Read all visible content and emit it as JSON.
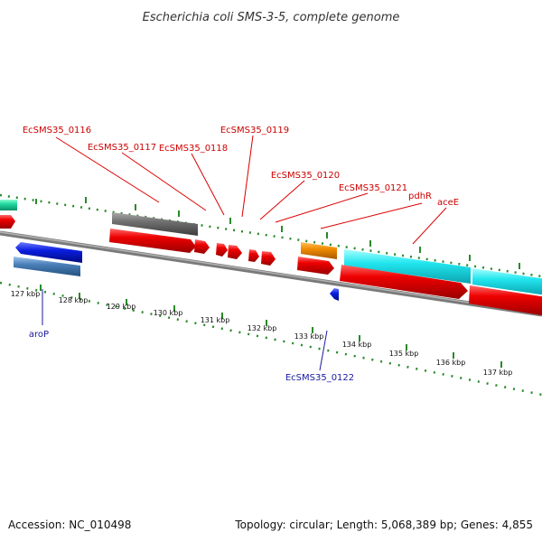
{
  "header": {
    "title": "Escherichia coli SMS-3-5, complete genome"
  },
  "footer": {
    "accession": "Accession: NC_010498",
    "summary": "Topology: circular; Length: 5,068,389 bp; Genes: 4,855"
  },
  "labels_forward": [
    "EcSMS35_0116",
    "EcSMS35_0117",
    "EcSMS35_0118",
    "EcSMS35_0119",
    "EcSMS35_0120",
    "EcSMS35_0121",
    "pdhR",
    "aceE"
  ],
  "labels_reverse": [
    "aroP",
    "EcSMS35_0122"
  ],
  "scale_ticks": [
    "127 kbp",
    "128 kbp",
    "129 kbp",
    "130 kbp",
    "131 kbp",
    "132 kbp",
    "133 kbp",
    "134 kbp",
    "135 kbp",
    "136 kbp",
    "137 kbp"
  ],
  "colors": {
    "forward_label": "#cc0000",
    "reverse_label": "#1a1aa0",
    "cds": "#ee0000",
    "gene_gray": "#6e6e6e",
    "gene_orange": "#f08c00",
    "gene_cyan": "#22e6ee",
    "gene_teal": "#22d8a0",
    "gene_blue": "#0a1ee0",
    "gene_steel": "#4a7fb8",
    "scale_dots": "#2a8a2a",
    "backbone": "#8a8a8a"
  }
}
